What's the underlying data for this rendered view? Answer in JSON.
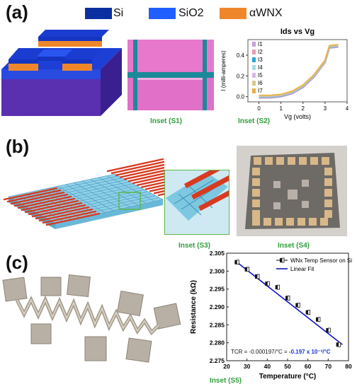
{
  "panel_a": {
    "letter": "(a)",
    "legend": [
      {
        "label": "Si",
        "color": "#0a2fa0"
      },
      {
        "label": "SiO2",
        "color": "#1f5fff"
      },
      {
        "label": "αWNX",
        "color": "#f0862a"
      }
    ],
    "inset_s1": "Inset (S1)",
    "inset_s2": "Inset (S2)"
  },
  "panel_b": {
    "letter": "(b)",
    "inset_s3": "Inset (S3)",
    "inset_s4": "Inset (S4)"
  },
  "panel_c": {
    "letter": "(c)",
    "inset_s5": "Inset (S5)",
    "tcr_text": "TCR = -0.000197/°C = ",
    "tcr_highlight": "-0.197 x 10⁻³/°C"
  },
  "chart_data": [
    {
      "type": "line",
      "title": "Ids vs Vg",
      "xlabel": "Vg (volts)",
      "ylabel": "I (milli-amperes)",
      "xlim": [
        -0.5,
        4
      ],
      "ylim": [
        -0.05,
        0.55
      ],
      "xticks": [
        "0",
        "1",
        "2",
        "3",
        "4"
      ],
      "yticks": [
        "0.0",
        "0.2",
        "0.4"
      ],
      "legend_position": "top-left",
      "series": [
        {
          "name": "I1",
          "color": "#c8a0d8"
        },
        {
          "name": "I2",
          "color": "#e89ab0"
        },
        {
          "name": "I3",
          "color": "#2aa6d8"
        },
        {
          "name": "I4",
          "color": "#a8d8e8"
        },
        {
          "name": "I5",
          "color": "#d8b8e8"
        },
        {
          "name": "I6",
          "color": "#d8c890"
        },
        {
          "name": "I7",
          "color": "#e8b040"
        }
      ],
      "x": [
        0,
        0.5,
        1.0,
        1.5,
        2.0,
        2.5,
        3.0,
        3.2,
        3.6
      ],
      "y": [
        0,
        0,
        0.01,
        0.04,
        0.1,
        0.2,
        0.34,
        0.48,
        0.49
      ]
    },
    {
      "type": "scatter",
      "xlabel": "Temperature (°C)",
      "ylabel": "Resistance (kΩ)",
      "xlim": [
        20,
        80
      ],
      "ylim": [
        2.275,
        2.305
      ],
      "xticks": [
        "20",
        "30",
        "40",
        "50",
        "60",
        "70",
        "80"
      ],
      "yticks": [
        "2.275",
        "2.280",
        "2.285",
        "2.290",
        "2.295",
        "2.300",
        "2.305"
      ],
      "legend_position": "top-right",
      "series": [
        {
          "name": "WNx Temp Sensor on Si",
          "x": [
            25,
            30,
            35,
            40,
            45,
            50,
            55,
            60,
            65,
            70,
            75
          ],
          "y": [
            2.3025,
            2.3005,
            2.2985,
            2.2965,
            2.2955,
            2.2925,
            2.2905,
            2.2885,
            2.2865,
            2.2835,
            2.2795
          ]
        },
        {
          "name": "Linear Fit",
          "x": [
            25,
            77
          ],
          "y": [
            2.3025,
            2.2795
          ]
        }
      ]
    }
  ]
}
